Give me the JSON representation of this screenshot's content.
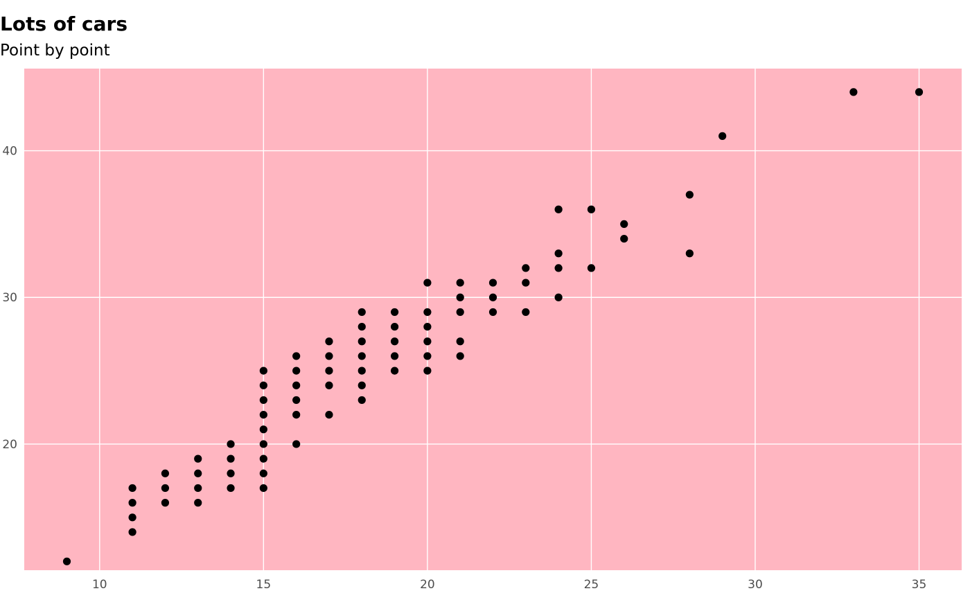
{
  "chart_data": {
    "type": "scatter",
    "title": "Lots of cars",
    "subtitle": "Point by point",
    "xlabel": "",
    "ylabel": "",
    "xlim": [
      7.7,
      36.3
    ],
    "ylim": [
      11.4,
      45.6
    ],
    "x_ticks": [
      10,
      15,
      20,
      25,
      30,
      35
    ],
    "y_ticks": [
      20,
      30,
      40
    ],
    "grid": true,
    "legend": "none",
    "colors": {
      "panel": "#ffb6c1",
      "grid": "#ffffff",
      "point": "#000000",
      "tick_text": "#4d4d4d"
    },
    "points": [
      [
        9,
        12
      ],
      [
        11,
        14
      ],
      [
        11,
        15
      ],
      [
        11,
        16
      ],
      [
        11,
        17
      ],
      [
        12,
        16
      ],
      [
        12,
        17
      ],
      [
        12,
        18
      ],
      [
        13,
        16
      ],
      [
        13,
        17
      ],
      [
        13,
        18
      ],
      [
        13,
        19
      ],
      [
        14,
        17
      ],
      [
        14,
        18
      ],
      [
        14,
        19
      ],
      [
        14,
        20
      ],
      [
        15,
        17
      ],
      [
        15,
        18
      ],
      [
        15,
        19
      ],
      [
        15,
        20
      ],
      [
        15,
        21
      ],
      [
        15,
        22
      ],
      [
        15,
        23
      ],
      [
        15,
        24
      ],
      [
        15,
        25
      ],
      [
        16,
        20
      ],
      [
        16,
        22
      ],
      [
        16,
        23
      ],
      [
        16,
        24
      ],
      [
        16,
        25
      ],
      [
        16,
        26
      ],
      [
        17,
        22
      ],
      [
        17,
        24
      ],
      [
        17,
        25
      ],
      [
        17,
        26
      ],
      [
        17,
        27
      ],
      [
        18,
        23
      ],
      [
        18,
        24
      ],
      [
        18,
        25
      ],
      [
        18,
        26
      ],
      [
        18,
        27
      ],
      [
        18,
        28
      ],
      [
        18,
        29
      ],
      [
        19,
        25
      ],
      [
        19,
        26
      ],
      [
        19,
        27
      ],
      [
        19,
        28
      ],
      [
        19,
        29
      ],
      [
        20,
        25
      ],
      [
        20,
        26
      ],
      [
        20,
        27
      ],
      [
        20,
        28
      ],
      [
        20,
        29
      ],
      [
        20,
        31
      ],
      [
        21,
        26
      ],
      [
        21,
        27
      ],
      [
        21,
        29
      ],
      [
        21,
        30
      ],
      [
        21,
        31
      ],
      [
        22,
        29
      ],
      [
        22,
        30
      ],
      [
        22,
        31
      ],
      [
        23,
        29
      ],
      [
        23,
        31
      ],
      [
        23,
        32
      ],
      [
        24,
        30
      ],
      [
        24,
        32
      ],
      [
        24,
        33
      ],
      [
        24,
        36
      ],
      [
        25,
        32
      ],
      [
        25,
        36
      ],
      [
        26,
        34
      ],
      [
        26,
        35
      ],
      [
        28,
        33
      ],
      [
        28,
        37
      ],
      [
        29,
        41
      ],
      [
        33,
        44
      ],
      [
        35,
        44
      ]
    ]
  }
}
